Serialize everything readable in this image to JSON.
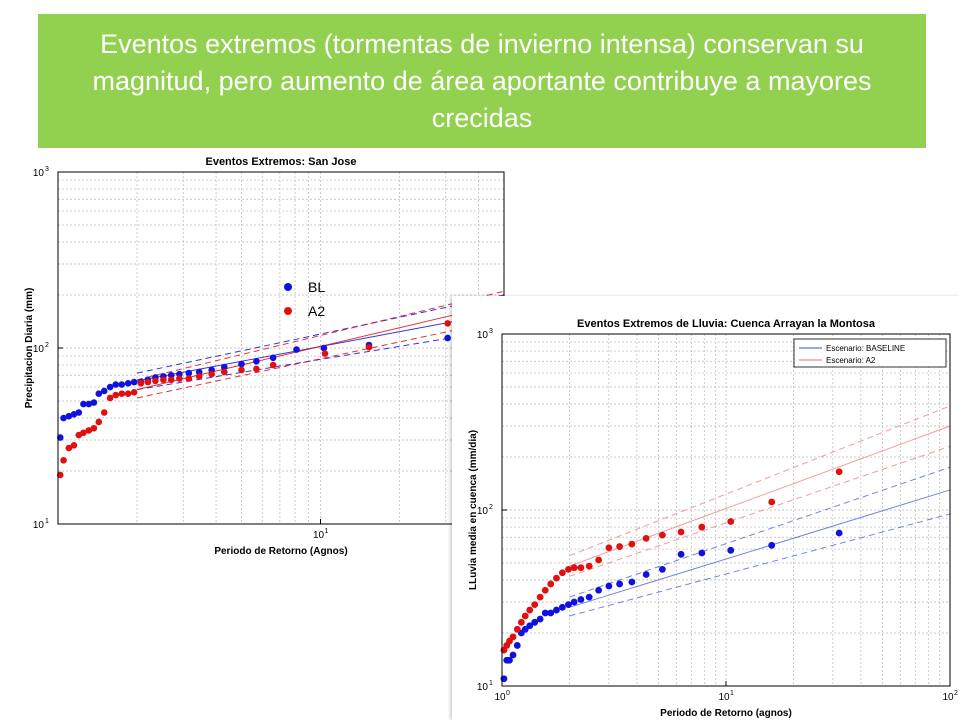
{
  "banner": {
    "text": "Eventos extremos (tormentas de invierno intensa) conservan su magnitud, pero aumento de área aportante contribuye a mayores crecidas",
    "background": "#92d050",
    "color": "#ffffff"
  },
  "colors": {
    "blue": "#1010e0",
    "red": "#e01010",
    "axis": "#000000",
    "grid": "#b8b8b8"
  },
  "chart_data": [
    {
      "type": "scatter",
      "title": "Eventos Extremos: San Jose",
      "xlabel": "Periodo de Retorno (Agnos)",
      "ylabel": "Precipitacion Diaria (mm)",
      "xscale": "log",
      "yscale": "log",
      "xlim": [
        1,
        50
      ],
      "ylim": [
        10,
        1000
      ],
      "yticks": [
        {
          "base": "10",
          "exp": "1",
          "value": 10
        },
        {
          "base": "10",
          "exp": "2",
          "value": 100
        },
        {
          "base": "10",
          "exp": "3",
          "value": 1000
        }
      ],
      "xticks": [
        {
          "base": "10",
          "exp": "1",
          "value": 10
        }
      ],
      "grid": true,
      "legend": {
        "position": "center-left",
        "entries": [
          {
            "label": "BL",
            "color": "#1010e0"
          },
          {
            "label": "A2",
            "color": "#e01010"
          }
        ]
      },
      "series": [
        {
          "name": "BL",
          "color": "#1010e0",
          "x": [
            1.02,
            1.05,
            1.1,
            1.15,
            1.2,
            1.25,
            1.31,
            1.37,
            1.43,
            1.5,
            1.58,
            1.66,
            1.75,
            1.85,
            1.95,
            2.07,
            2.2,
            2.35,
            2.52,
            2.7,
            2.9,
            3.15,
            3.45,
            3.85,
            4.3,
            5.0,
            5.7,
            6.6,
            8.1,
            10.3,
            15.3,
            30.5
          ],
          "y": [
            31,
            40,
            41,
            42,
            43,
            48,
            48,
            49,
            55,
            57,
            60,
            62,
            62,
            63,
            64,
            64,
            66,
            68,
            69,
            70,
            71,
            72,
            73,
            75,
            78,
            81,
            84,
            88,
            98,
            100,
            104,
            114
          ]
        },
        {
          "name": "A2",
          "color": "#e01010",
          "x": [
            1.02,
            1.05,
            1.1,
            1.15,
            1.2,
            1.25,
            1.31,
            1.37,
            1.43,
            1.5,
            1.58,
            1.66,
            1.75,
            1.85,
            1.95,
            2.07,
            2.2,
            2.35,
            2.52,
            2.7,
            2.9,
            3.15,
            3.45,
            3.85,
            4.3,
            5.0,
            5.7,
            6.6,
            10.4,
            15.3,
            30.5
          ],
          "y": [
            19,
            23,
            27,
            28,
            32,
            33,
            34,
            35,
            38,
            43,
            52,
            54,
            55,
            55,
            56,
            63,
            64,
            65,
            66,
            66,
            67,
            67,
            69,
            71,
            73,
            75,
            76,
            80,
            93,
            101,
            138
          ]
        }
      ],
      "fits": [
        {
          "series": "BL",
          "color": "#1010e0",
          "x": [
            2,
            50
          ],
          "y": [
            65,
            160
          ],
          "lower": [
            58,
            128
          ],
          "upper": [
            72,
            200
          ]
        },
        {
          "series": "A2",
          "color": "#e01010",
          "x": [
            2,
            50
          ],
          "y": [
            58,
            180
          ],
          "lower": [
            52,
            145
          ],
          "upper": [
            66,
            210
          ]
        }
      ]
    },
    {
      "type": "scatter",
      "title": "Eventos Extremos de Lluvia: Cuenca Arrayan la Montosa",
      "xlabel": "Periodo de Retorno (agnos)",
      "ylabel": "LLuvia media en cuenca (mm/dia)",
      "xscale": "log",
      "yscale": "log",
      "xlim": [
        1,
        100
      ],
      "ylim": [
        10,
        1000
      ],
      "xticks": [
        {
          "base": "10",
          "exp": "0",
          "value": 1
        },
        {
          "base": "10",
          "exp": "1",
          "value": 10
        },
        {
          "base": "10",
          "exp": "2",
          "value": 100
        }
      ],
      "yticks": [
        {
          "base": "10",
          "exp": "1",
          "value": 10
        },
        {
          "base": "10",
          "exp": "2",
          "value": 100
        },
        {
          "base": "10",
          "exp": "3",
          "value": 1000
        }
      ],
      "grid": true,
      "legend": {
        "position": "top-right",
        "entries": [
          {
            "label": "Escenario: BASELINE",
            "color": "#5a6fe0"
          },
          {
            "label": "Escenario: A2",
            "color": "#f08a8a"
          }
        ]
      },
      "series": [
        {
          "name": "Escenario: BASELINE",
          "color": "#1010e0",
          "x": [
            1.02,
            1.05,
            1.08,
            1.12,
            1.17,
            1.22,
            1.27,
            1.33,
            1.4,
            1.48,
            1.56,
            1.65,
            1.75,
            1.86,
            1.98,
            2.1,
            2.25,
            2.45,
            2.7,
            3.0,
            3.35,
            3.8,
            4.4,
            5.2,
            6.3,
            7.8,
            10.5,
            16,
            32
          ],
          "y": [
            11,
            14,
            14,
            15,
            17,
            20,
            21,
            22,
            23,
            24,
            26,
            26,
            27,
            28,
            29,
            30,
            31,
            32,
            35,
            37,
            38,
            39,
            43,
            46,
            56,
            57,
            59,
            63,
            74
          ]
        },
        {
          "name": "Escenario: A2",
          "color": "#e01010",
          "x": [
            1.02,
            1.05,
            1.08,
            1.12,
            1.17,
            1.22,
            1.27,
            1.33,
            1.4,
            1.48,
            1.56,
            1.65,
            1.75,
            1.86,
            1.98,
            2.1,
            2.25,
            2.45,
            2.7,
            3.0,
            3.35,
            3.8,
            4.4,
            5.2,
            6.3,
            7.8,
            10.5,
            16,
            32
          ],
          "y": [
            16,
            17,
            18,
            19,
            21,
            23,
            25,
            27,
            29,
            32,
            35,
            38,
            41,
            44,
            46,
            47,
            47,
            48,
            52,
            61,
            62,
            64,
            69,
            72,
            75,
            80,
            86,
            111,
            165
          ]
        }
      ],
      "fits": [
        {
          "series": "Escenario: BASELINE",
          "color": "#5a6fe0",
          "x": [
            2,
            100
          ],
          "y": [
            28,
            130
          ],
          "lower": [
            25,
            95
          ],
          "upper": [
            32,
            175
          ]
        },
        {
          "series": "Escenario: A2",
          "color": "#f08a8a",
          "x": [
            2,
            100
          ],
          "y": [
            48,
            300
          ],
          "lower": [
            42,
            230
          ],
          "upper": [
            55,
            390
          ]
        }
      ]
    }
  ]
}
